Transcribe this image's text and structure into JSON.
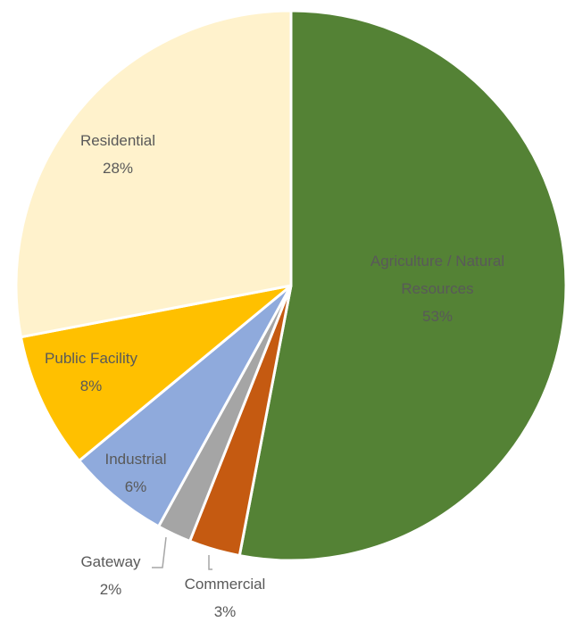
{
  "chart_data": {
    "type": "pie",
    "title": "",
    "start_angle_deg": 0,
    "direction": "clockwise",
    "legend": "none",
    "slices": [
      {
        "name": "Agriculture / Natural Resources",
        "label_lines": [
          "Agriculture / Natural",
          "Resources"
        ],
        "value": 53,
        "value_label": "53%",
        "color": "#548235"
      },
      {
        "name": "Commercial",
        "label_lines": [
          "Commercial"
        ],
        "value": 3,
        "value_label": "3%",
        "color": "#c55a11"
      },
      {
        "name": "Gateway",
        "label_lines": [
          "Gateway"
        ],
        "value": 2,
        "value_label": "2%",
        "color": "#a5a5a5"
      },
      {
        "name": "Industrial",
        "label_lines": [
          "Industrial"
        ],
        "value": 6,
        "value_label": "6%",
        "color": "#8faadc"
      },
      {
        "name": "Public Facility",
        "label_lines": [
          "Public Facility"
        ],
        "value": 8,
        "value_label": "8%",
        "color": "#ffc000"
      },
      {
        "name": "Residential",
        "label_lines": [
          "Residential"
        ],
        "value": 28,
        "value_label": "28%",
        "color": "#fff2cc"
      }
    ]
  }
}
